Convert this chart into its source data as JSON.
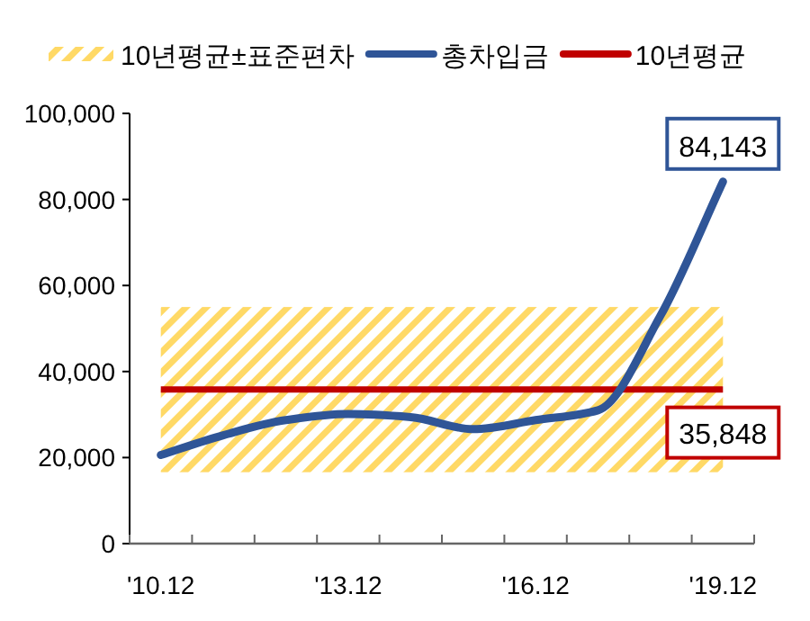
{
  "chart_data": {
    "type": "line",
    "categories": [
      "'10.12",
      null,
      null,
      "'13.12",
      null,
      null,
      "'16.12",
      null,
      null,
      "'19.12"
    ],
    "series": [
      {
        "name": "총차입금",
        "color": "#2f5597",
        "values": [
          20600,
          25200,
          28700,
          30100,
          29400,
          26600,
          28700,
          31000,
          53000,
          84143
        ],
        "value_labels": [
          null,
          null,
          null,
          null,
          null,
          null,
          null,
          null,
          null,
          "84,143"
        ]
      }
    ],
    "ylim": [
      0,
      100000
    ],
    "yticks": [
      {
        "value": 0,
        "label": "0"
      },
      {
        "value": 20000,
        "label": "20,000"
      },
      {
        "value": 40000,
        "label": "40,000"
      },
      {
        "value": 60000,
        "label": "60,000"
      },
      {
        "value": 80000,
        "label": "80,000"
      },
      {
        "value": 100000,
        "label": "100,000"
      }
    ],
    "bands": [
      {
        "axis": "y",
        "from": 16600,
        "to": 55000,
        "label": "10년평균±표준편차",
        "color": "#ffd966"
      }
    ],
    "ref_lines": [
      {
        "axis": "y",
        "value": 35848,
        "label": "10년평균",
        "color": "#c00000"
      }
    ],
    "annotations": [
      {
        "text": "35,848",
        "x": "'19.12",
        "y": 35848
      }
    ],
    "legend": "top",
    "grid": false,
    "marker": "none",
    "line_style": "solid"
  }
}
